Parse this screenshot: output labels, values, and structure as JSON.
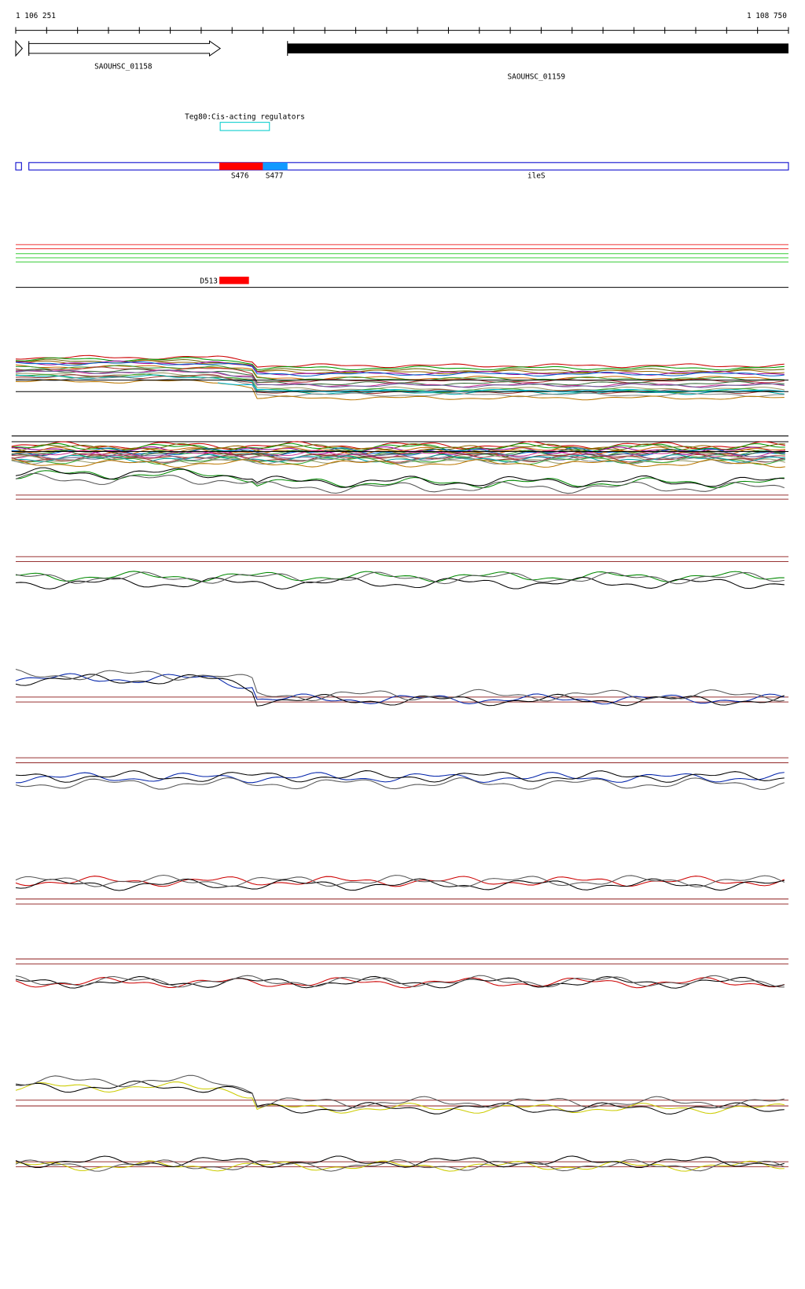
{
  "ruler": {
    "start": "1 106 251",
    "end": "1 108 750"
  },
  "genes": [
    {
      "label": "SAOUHSC_01158"
    },
    {
      "label": "SAOUHSC_01159"
    }
  ],
  "regulator": {
    "label": "Teg80:Cis-acting regulators"
  },
  "segments": [
    {
      "label": "S476"
    },
    {
      "label": "S477"
    },
    {
      "label": "ileS"
    }
  ],
  "feature": {
    "label": "D513"
  }
}
